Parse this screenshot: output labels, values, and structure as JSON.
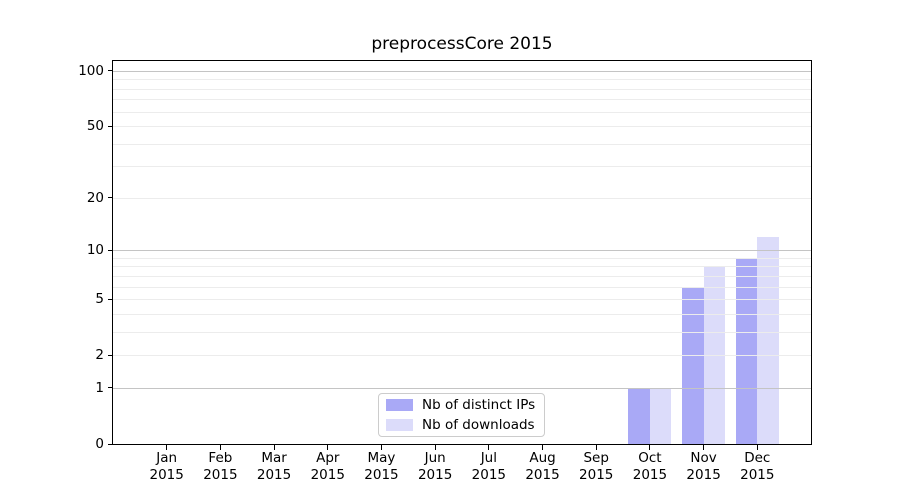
{
  "chart_data": {
    "type": "bar",
    "title": "preprocessCore 2015",
    "year": "2015",
    "months": [
      "Jan",
      "Feb",
      "Mar",
      "Apr",
      "May",
      "Jun",
      "Jul",
      "Aug",
      "Sep",
      "Oct",
      "Nov",
      "Dec"
    ],
    "series": [
      {
        "name": "Nb of distinct IPs",
        "color": "#a9a9f6",
        "values": [
          0,
          0,
          0,
          0,
          0,
          0,
          0,
          0,
          0,
          1,
          6,
          9
        ]
      },
      {
        "name": "Nb of downloads",
        "color": "#dcdcfa",
        "values": [
          0,
          0,
          0,
          0,
          0,
          0,
          0,
          0,
          0,
          1,
          8,
          12
        ]
      }
    ],
    "y_ticks": [
      0,
      1,
      2,
      5,
      10,
      20,
      50,
      100
    ],
    "y_scale": "log1p",
    "ylim": [
      0,
      113
    ],
    "xlabel": "",
    "ylabel": "",
    "grid": {
      "major": [
        1,
        10,
        100
      ],
      "minor": [
        2,
        3,
        4,
        5,
        6,
        7,
        8,
        9,
        20,
        30,
        40,
        50,
        60,
        70,
        80,
        90
      ],
      "major_color": "#c4c4c4",
      "minor_color": "#ececec"
    },
    "legend_position": "bottom-center",
    "colors": {
      "background": "#ffffff",
      "axis": "#000000",
      "text": "#000000"
    }
  }
}
